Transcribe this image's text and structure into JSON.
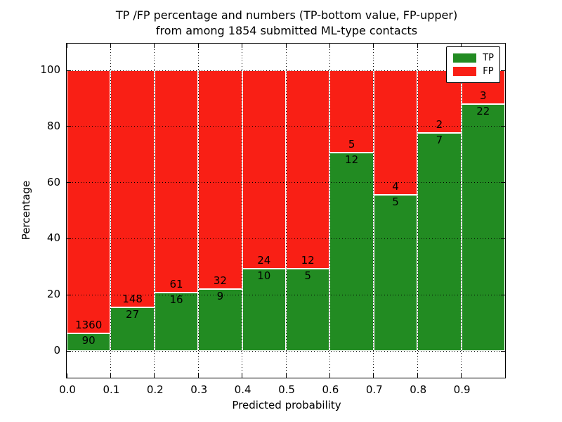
{
  "title": {
    "line1": "TP /FP percentage and numbers (TP-bottom value, FP-upper)",
    "line2": "from among 1854 submitted ML-type contacts"
  },
  "axes": {
    "xlabel": "Predicted probability",
    "ylabel": "Percentage"
  },
  "chart_data": {
    "type": "bar",
    "subtype": "stacked-percentage-histogram",
    "title": "TP /FP percentage and numbers (TP-bottom value, FP-upper)\nfrom among 1854 submitted ML-type contacts",
    "xlabel": "Predicted probability",
    "ylabel": "Percentage",
    "total_contacts": 1854,
    "bin_edges": [
      0.0,
      0.1,
      0.2,
      0.3,
      0.4,
      0.5,
      0.6,
      0.7,
      0.8,
      0.9,
      1.0
    ],
    "categories": [
      "0.0-0.1",
      "0.1-0.2",
      "0.2-0.3",
      "0.3-0.4",
      "0.4-0.5",
      "0.5-0.6",
      "0.6-0.7",
      "0.7-0.8",
      "0.8-0.9",
      "0.9-1.0"
    ],
    "series": [
      {
        "name": "TP",
        "color": "#228b22",
        "counts": [
          90,
          27,
          16,
          9,
          10,
          5,
          12,
          5,
          7,
          22
        ]
      },
      {
        "name": "FP",
        "color": "#f91f15",
        "counts": [
          1360,
          148,
          61,
          32,
          24,
          12,
          5,
          4,
          2,
          3
        ]
      }
    ],
    "tp_percent": [
      6.21,
      15.43,
      20.78,
      21.95,
      29.41,
      29.41,
      70.59,
      55.56,
      77.78,
      88.0
    ],
    "x_tick_labels": [
      "0.0",
      "0.1",
      "0.2",
      "0.3",
      "0.4",
      "0.5",
      "0.6",
      "0.7",
      "0.8",
      "0.9"
    ],
    "y_ticks": [
      0,
      20,
      40,
      60,
      80,
      100
    ],
    "xlim": [
      0.0,
      1.0
    ],
    "ylim": [
      -10,
      110
    ],
    "grid": true,
    "grid_style": "dotted",
    "bar_edge_color": "#ffffff",
    "legend": {
      "position": "upper right",
      "entries": [
        {
          "label": "TP",
          "color": "#228b22"
        },
        {
          "label": "FP",
          "color": "#f91f15"
        }
      ]
    }
  }
}
